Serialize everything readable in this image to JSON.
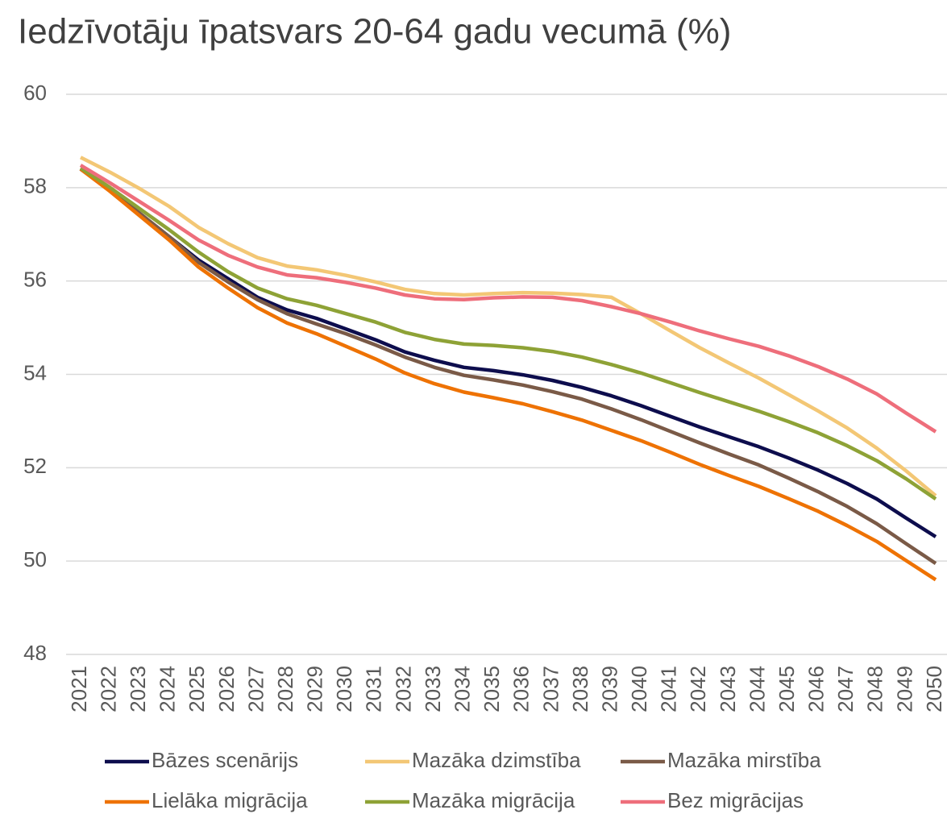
{
  "chart_data": {
    "type": "line",
    "title": "Iedzīvotāju īpatsvars 20-64 gadu vecumā (%)",
    "categories": [
      "2021",
      "2022",
      "2023",
      "2024",
      "2025",
      "2026",
      "2027",
      "2028",
      "2029",
      "2030",
      "2031",
      "2032",
      "2033",
      "2034",
      "2035",
      "2036",
      "2037",
      "2038",
      "2039",
      "2040",
      "2041",
      "2042",
      "2043",
      "2044",
      "2045",
      "2046",
      "2047",
      "2048",
      "2049",
      "2050"
    ],
    "ylim": [
      48,
      60
    ],
    "yticks": [
      48,
      50,
      52,
      54,
      56,
      58,
      60
    ],
    "grid": true,
    "legend": "bottom",
    "series": [
      {
        "name": "Bāzes scenārijs",
        "color": "#0d0d4d",
        "values": [
          58.4,
          57.95,
          57.45,
          56.95,
          56.45,
          56.05,
          55.65,
          55.38,
          55.2,
          54.97,
          54.74,
          54.48,
          54.3,
          54.15,
          54.08,
          53.99,
          53.87,
          53.72,
          53.54,
          53.33,
          53.1,
          52.87,
          52.66,
          52.45,
          52.21,
          51.95,
          51.66,
          51.33,
          50.92,
          50.52
        ]
      },
      {
        "name": "Mazāka dzimstība",
        "color": "#f3c775",
        "values": [
          58.65,
          58.33,
          57.98,
          57.6,
          57.15,
          56.8,
          56.5,
          56.32,
          56.24,
          56.12,
          55.98,
          55.82,
          55.73,
          55.7,
          55.73,
          55.75,
          55.74,
          55.71,
          55.65,
          55.3,
          54.93,
          54.57,
          54.24,
          53.92,
          53.57,
          53.22,
          52.85,
          52.42,
          51.93,
          51.4
        ]
      },
      {
        "name": "Mazāka mirstība",
        "color": "#7a5a47",
        "values": [
          58.4,
          57.95,
          57.45,
          56.95,
          56.4,
          55.98,
          55.6,
          55.3,
          55.08,
          54.87,
          54.63,
          54.37,
          54.15,
          53.98,
          53.88,
          53.77,
          53.63,
          53.47,
          53.26,
          53.03,
          52.78,
          52.53,
          52.29,
          52.06,
          51.78,
          51.49,
          51.17,
          50.8,
          50.37,
          49.95
        ]
      },
      {
        "name": "Lielāka migrācija",
        "color": "#ee7203",
        "values": [
          58.4,
          57.92,
          57.4,
          56.88,
          56.3,
          55.85,
          55.43,
          55.1,
          54.87,
          54.6,
          54.33,
          54.03,
          53.8,
          53.62,
          53.5,
          53.37,
          53.2,
          53.02,
          52.8,
          52.58,
          52.33,
          52.07,
          51.83,
          51.6,
          51.34,
          51.07,
          50.76,
          50.42,
          50.01,
          49.6
        ]
      },
      {
        "name": "Mazāka migrācija",
        "color": "#8ea236",
        "values": [
          58.42,
          58.0,
          57.55,
          57.1,
          56.62,
          56.2,
          55.85,
          55.62,
          55.48,
          55.3,
          55.12,
          54.9,
          54.75,
          54.65,
          54.62,
          54.57,
          54.49,
          54.37,
          54.21,
          54.03,
          53.82,
          53.61,
          53.41,
          53.21,
          52.99,
          52.75,
          52.47,
          52.15,
          51.76,
          51.33
        ]
      },
      {
        "name": "Bez migrācijas",
        "color": "#ee6e7b",
        "values": [
          58.48,
          58.1,
          57.7,
          57.3,
          56.88,
          56.55,
          56.3,
          56.13,
          56.07,
          55.97,
          55.85,
          55.7,
          55.62,
          55.6,
          55.64,
          55.66,
          55.65,
          55.58,
          55.45,
          55.3,
          55.12,
          54.93,
          54.76,
          54.6,
          54.4,
          54.17,
          53.9,
          53.58,
          53.17,
          52.77
        ]
      }
    ]
  }
}
